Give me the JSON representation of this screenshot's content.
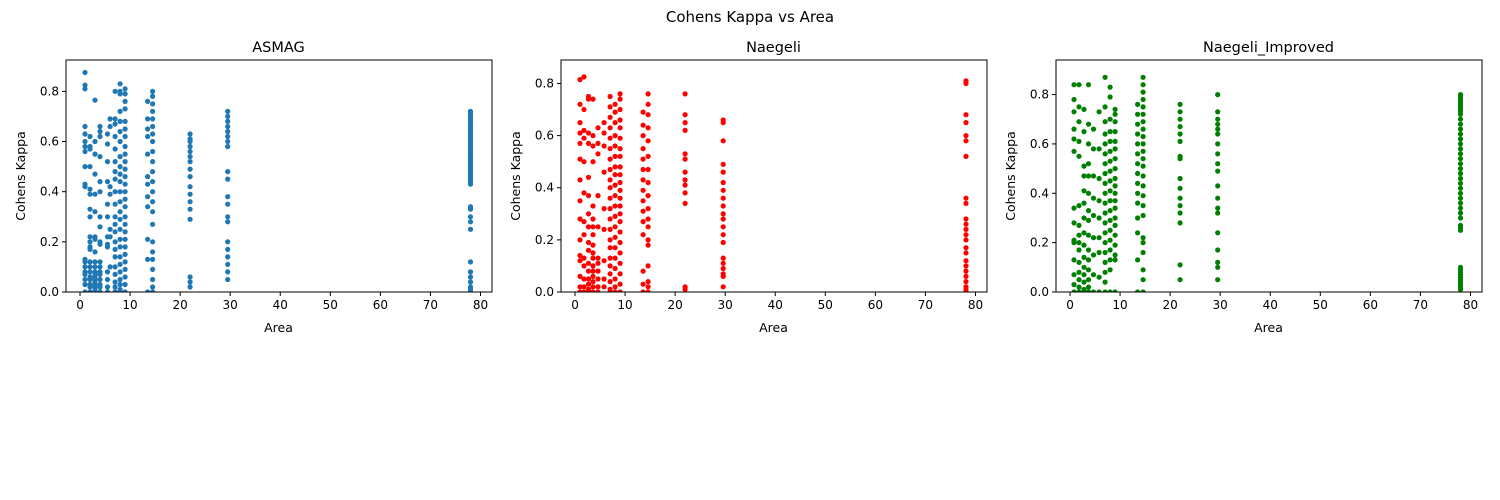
{
  "figure": {
    "suptitle": "Cohens Kappa vs Area"
  },
  "chart_data": [
    {
      "type": "scatter",
      "title": "ASMAG",
      "xlabel": "Area",
      "ylabel": "Cohens Kappa",
      "color": "#1f77b4",
      "xlim": [
        -2.8,
        82.3
      ],
      "ylim": [
        0,
        0.925
      ],
      "xticks": [
        "0",
        "10",
        "20",
        "30",
        "40",
        "50",
        "60",
        "70",
        "80"
      ],
      "yticks": [
        "0.0",
        "0.2",
        "0.4",
        "0.6",
        "0.8"
      ],
      "ytick_values": [
        0,
        0.2,
        0.4,
        0.6,
        0.8
      ],
      "columns": [
        {
          "x": 1.0,
          "y": [
            0.875,
            0.825,
            0.81,
            0.66,
            0.63,
            0.6,
            0.58,
            0.56,
            0.5,
            0.43,
            0.42,
            0.13,
            0.12,
            0.1,
            0.08,
            0.07,
            0.05,
            0.03,
            0.0
          ]
        },
        {
          "x": 2.0,
          "y": [
            0.62,
            0.58,
            0.57,
            0.5,
            0.41,
            0.39,
            0.33,
            0.3,
            0.22,
            0.2,
            0.18,
            0.17,
            0.12,
            0.1,
            0.08,
            0.06,
            0.05,
            0.03,
            0.02,
            0.0
          ]
        },
        {
          "x": 3.0,
          "y": [
            0.765,
            0.6,
            0.55,
            0.47,
            0.39,
            0.32,
            0.22,
            0.21,
            0.16,
            0.12,
            0.1,
            0.08,
            0.07,
            0.06,
            0.05,
            0.04,
            0.03,
            0.02,
            0.01,
            0.0
          ]
        },
        {
          "x": 4.0,
          "y": [
            0.66,
            0.64,
            0.62,
            0.54,
            0.44,
            0.4,
            0.3,
            0.26,
            0.2,
            0.19,
            0.12,
            0.1,
            0.08,
            0.07,
            0.05,
            0.03,
            0.02,
            0.0
          ]
        },
        {
          "x": 5.5,
          "y": [
            0.63,
            0.59,
            0.52,
            0.44,
            0.35,
            0.3,
            0.22,
            0.19,
            0.18,
            0.08,
            0.05,
            0.02,
            0.0
          ]
        },
        {
          "x": 6.0,
          "y": [
            0.69,
            0.66,
            0.42,
            0.39,
            0.25,
            0.22,
            0.1
          ]
        },
        {
          "x": 7.0,
          "y": [
            0.8,
            0.69,
            0.67,
            0.62,
            0.57,
            0.52,
            0.48,
            0.45,
            0.4,
            0.35,
            0.3,
            0.27,
            0.24,
            0.2,
            0.17,
            0.14,
            0.1,
            0.07,
            0.04,
            0.02,
            0.0
          ]
        },
        {
          "x": 8.0,
          "y": [
            0.83,
            0.8,
            0.79,
            0.72,
            0.68,
            0.64,
            0.6,
            0.54,
            0.5,
            0.47,
            0.44,
            0.4,
            0.36,
            0.32,
            0.29,
            0.25,
            0.21,
            0.18,
            0.14,
            0.11,
            0.08,
            0.05,
            0.03,
            0.01,
            0.0
          ]
        },
        {
          "x": 9.0,
          "y": [
            0.81,
            0.79,
            0.76,
            0.73,
            0.68,
            0.65,
            0.62,
            0.58,
            0.55,
            0.52,
            0.49,
            0.46,
            0.43,
            0.4,
            0.37,
            0.34,
            0.3,
            0.27,
            0.24,
            0.21,
            0.18,
            0.15,
            0.12,
            0.09,
            0.06,
            0.03,
            0.0
          ]
        },
        {
          "x": 13.5,
          "y": [
            0.76,
            0.69,
            0.65,
            0.62,
            0.55,
            0.46,
            0.43,
            0.38,
            0.34,
            0.21,
            0.13,
            0.0
          ]
        },
        {
          "x": 14.5,
          "y": [
            0.8,
            0.78,
            0.75,
            0.72,
            0.69,
            0.66,
            0.63,
            0.6,
            0.56,
            0.52,
            0.48,
            0.44,
            0.4,
            0.36,
            0.32,
            0.27,
            0.2,
            0.16,
            0.13,
            0.09,
            0.05,
            0.02,
            0.0
          ]
        },
        {
          "x": 22.0,
          "y": [
            0.63,
            0.61,
            0.6,
            0.58,
            0.56,
            0.54,
            0.52,
            0.49,
            0.46,
            0.42,
            0.39,
            0.36,
            0.33,
            0.29,
            0.06,
            0.04,
            0.02
          ]
        },
        {
          "x": 29.5,
          "y": [
            0.72,
            0.7,
            0.68,
            0.66,
            0.64,
            0.62,
            0.6,
            0.58,
            0.48,
            0.45,
            0.38,
            0.35,
            0.3,
            0.28,
            0.2,
            0.17,
            0.14,
            0.11,
            0.08,
            0.05
          ]
        },
        {
          "x": 78.0,
          "y": [
            0.72,
            0.71,
            0.7,
            0.69,
            0.68,
            0.67,
            0.66,
            0.65,
            0.64,
            0.63,
            0.62,
            0.61,
            0.6,
            0.59,
            0.58,
            0.57,
            0.56,
            0.55,
            0.54,
            0.53,
            0.52,
            0.51,
            0.5,
            0.49,
            0.48,
            0.47,
            0.46,
            0.45,
            0.44,
            0.43,
            0.34,
            0.33,
            0.3,
            0.28,
            0.25,
            0.12,
            0.08,
            0.06,
            0.04,
            0.02,
            0.01,
            0.0
          ]
        }
      ]
    },
    {
      "type": "scatter",
      "title": "Naegeli",
      "xlabel": "Area",
      "ylabel": "Cohens Kappa",
      "color": "#ff0000",
      "xlim": [
        -2.8,
        82.3
      ],
      "ylim": [
        0,
        0.89
      ],
      "xticks": [
        "0",
        "10",
        "20",
        "30",
        "40",
        "50",
        "60",
        "70",
        "80"
      ],
      "yticks": [
        "0.0",
        "0.2",
        "0.4",
        "0.6",
        "0.8"
      ],
      "ytick_values": [
        0,
        0.2,
        0.4,
        0.6,
        0.8
      ],
      "columns": [
        {
          "x": 1.0,
          "y": [
            0.815,
            0.72,
            0.65,
            0.61,
            0.57,
            0.51,
            0.43,
            0.35,
            0.28,
            0.2,
            0.14,
            0.12,
            0.06,
            0.02,
            0.0
          ]
        },
        {
          "x": 1.8,
          "y": [
            0.825,
            0.7,
            0.62,
            0.59,
            0.5,
            0.38,
            0.27,
            0.22,
            0.13,
            0.1,
            0.05,
            0.02,
            0.0
          ]
        },
        {
          "x": 2.7,
          "y": [
            0.75,
            0.74,
            0.61,
            0.57,
            0.44,
            0.37,
            0.3,
            0.25,
            0.19,
            0.16,
            0.11,
            0.08,
            0.05,
            0.03,
            0.01,
            0.0
          ]
        },
        {
          "x": 3.6,
          "y": [
            0.74,
            0.6,
            0.56,
            0.5,
            0.33,
            0.28,
            0.25,
            0.22,
            0.18,
            0.15,
            0.13,
            0.1,
            0.08,
            0.06,
            0.04,
            0.02,
            0.0
          ]
        },
        {
          "x": 4.6,
          "y": [
            0.63,
            0.57,
            0.53,
            0.37,
            0.25,
            0.13,
            0.11,
            0.08,
            0.05,
            0.02,
            0.0
          ]
        },
        {
          "x": 5.8,
          "y": [
            0.65,
            0.61,
            0.56,
            0.46,
            0.32,
            0.24,
            0.12,
            0.05,
            0.02
          ]
        },
        {
          "x": 7.0,
          "y": [
            0.75,
            0.71,
            0.67,
            0.63,
            0.59,
            0.55,
            0.51,
            0.47,
            0.43,
            0.4,
            0.36,
            0.32,
            0.28,
            0.24,
            0.2,
            0.17,
            0.13,
            0.1,
            0.07,
            0.04,
            0.01,
            0.0
          ]
        },
        {
          "x": 8.0,
          "y": [
            0.72,
            0.69,
            0.65,
            0.6,
            0.56,
            0.52,
            0.48,
            0.45,
            0.41,
            0.37,
            0.33,
            0.29,
            0.25,
            0.21,
            0.17,
            0.13,
            0.09,
            0.05,
            0.02,
            0.0
          ]
        },
        {
          "x": 9.0,
          "y": [
            0.76,
            0.74,
            0.7,
            0.66,
            0.63,
            0.59,
            0.55,
            0.52,
            0.48,
            0.45,
            0.42,
            0.39,
            0.36,
            0.33,
            0.3,
            0.27,
            0.23,
            0.19,
            0.15,
            0.11,
            0.07,
            0.03,
            0.0
          ]
        },
        {
          "x": 13.6,
          "y": [
            0.69,
            0.64,
            0.6,
            0.55,
            0.51,
            0.47,
            0.43,
            0.39,
            0.35,
            0.31,
            0.27,
            0.22,
            0.08,
            0.03,
            0.0
          ]
        },
        {
          "x": 14.6,
          "y": [
            0.76,
            0.72,
            0.68,
            0.63,
            0.58,
            0.52,
            0.47,
            0.42,
            0.37,
            0.32,
            0.28,
            0.25,
            0.2,
            0.18,
            0.1,
            0.04,
            0.02,
            0.0
          ]
        },
        {
          "x": 22.0,
          "y": [
            0.76,
            0.68,
            0.65,
            0.62,
            0.53,
            0.51,
            0.46,
            0.43,
            0.41,
            0.38,
            0.34,
            0.02,
            0.01
          ]
        },
        {
          "x": 29.6,
          "y": [
            0.66,
            0.65,
            0.58,
            0.49,
            0.46,
            0.42,
            0.39,
            0.36,
            0.33,
            0.3,
            0.28,
            0.25,
            0.22,
            0.19,
            0.13,
            0.11,
            0.09,
            0.07,
            0.06,
            0.02
          ]
        },
        {
          "x": 78.1,
          "y": [
            0.81,
            0.8,
            0.68,
            0.65,
            0.6,
            0.58,
            0.52,
            0.36,
            0.34,
            0.28,
            0.26,
            0.24,
            0.22,
            0.2,
            0.17,
            0.15,
            0.12,
            0.1,
            0.08,
            0.06,
            0.04,
            0.02,
            0.01,
            0.0
          ]
        }
      ]
    },
    {
      "type": "scatter",
      "title": "Naegeli_Improved",
      "xlabel": "Area",
      "ylabel": "Cohens Kappa",
      "color": "#008000",
      "xlim": [
        -2.8,
        82.3
      ],
      "ylim": [
        0,
        0.94
      ],
      "xticks": [
        "0",
        "10",
        "20",
        "30",
        "40",
        "50",
        "60",
        "70",
        "80"
      ],
      "yticks": [
        "0.0",
        "0.2",
        "0.4",
        "0.6",
        "0.8"
      ],
      "ytick_values": [
        0,
        0.2,
        0.4,
        0.6,
        0.8
      ],
      "columns": [
        {
          "x": 0.8,
          "y": [
            0.84,
            0.78,
            0.73,
            0.66,
            0.62,
            0.57,
            0.34,
            0.28,
            0.21,
            0.2,
            0.13,
            0.07,
            0.03,
            0.0
          ]
        },
        {
          "x": 1.8,
          "y": [
            0.84,
            0.75,
            0.69,
            0.61,
            0.55,
            0.35,
            0.27,
            0.23,
            0.2,
            0.17,
            0.12,
            0.08,
            0.05,
            0.02,
            0.0
          ]
        },
        {
          "x": 2.8,
          "y": [
            0.74,
            0.65,
            0.51,
            0.47,
            0.41,
            0.36,
            0.3,
            0.24,
            0.19,
            0.14,
            0.1,
            0.07,
            0.04,
            0.01,
            0.0
          ]
        },
        {
          "x": 3.7,
          "y": [
            0.84,
            0.68,
            0.6,
            0.52,
            0.47,
            0.4,
            0.33,
            0.29,
            0.23,
            0.17,
            0.13,
            0.09,
            0.05,
            0.02,
            0.0
          ]
        },
        {
          "x": 4.7,
          "y": [
            0.66,
            0.58,
            0.47,
            0.38,
            0.31,
            0.22,
            0.15,
            0.07,
            0.0
          ]
        },
        {
          "x": 5.8,
          "y": [
            0.73,
            0.58,
            0.46,
            0.37,
            0.3,
            0.22,
            0.16,
            0.06,
            0.0
          ]
        },
        {
          "x": 7.0,
          "y": [
            0.87,
            0.75,
            0.69,
            0.64,
            0.6,
            0.56,
            0.52,
            0.48,
            0.44,
            0.4,
            0.36,
            0.32,
            0.28,
            0.24,
            0.2,
            0.16,
            0.12,
            0.08,
            0.04,
            0.0
          ]
        },
        {
          "x": 8.0,
          "y": [
            0.83,
            0.79,
            0.7,
            0.65,
            0.61,
            0.57,
            0.53,
            0.49,
            0.45,
            0.41,
            0.37,
            0.33,
            0.29,
            0.25,
            0.21,
            0.17,
            0.13,
            0.09,
            0.0
          ]
        },
        {
          "x": 9.0,
          "y": [
            0.74,
            0.72,
            0.69,
            0.65,
            0.61,
            0.58,
            0.54,
            0.5,
            0.46,
            0.43,
            0.4,
            0.37,
            0.34,
            0.3,
            0.27,
            0.23,
            0.19,
            0.15,
            0.13,
            0.0
          ]
        },
        {
          "x": 13.5,
          "y": [
            0.76,
            0.72,
            0.68,
            0.64,
            0.6,
            0.56,
            0.52,
            0.48,
            0.44,
            0.4,
            0.36,
            0.3,
            0.24,
            0.13,
            0.0
          ]
        },
        {
          "x": 14.6,
          "y": [
            0.87,
            0.84,
            0.81,
            0.78,
            0.75,
            0.72,
            0.69,
            0.66,
            0.63,
            0.6,
            0.57,
            0.54,
            0.51,
            0.47,
            0.43,
            0.39,
            0.35,
            0.31,
            0.22,
            0.2,
            0.16,
            0.09,
            0.05,
            0.0
          ]
        },
        {
          "x": 22.0,
          "y": [
            0.76,
            0.73,
            0.7,
            0.67,
            0.64,
            0.61,
            0.55,
            0.54,
            0.46,
            0.42,
            0.38,
            0.35,
            0.32,
            0.28,
            0.11,
            0.05
          ]
        },
        {
          "x": 29.5,
          "y": [
            0.8,
            0.73,
            0.7,
            0.68,
            0.66,
            0.64,
            0.6,
            0.56,
            0.52,
            0.49,
            0.43,
            0.38,
            0.34,
            0.32,
            0.24,
            0.17,
            0.12,
            0.1,
            0.05
          ]
        },
        {
          "x": 78.0,
          "y": [
            0.8,
            0.79,
            0.78,
            0.77,
            0.76,
            0.75,
            0.74,
            0.73,
            0.72,
            0.7,
            0.68,
            0.66,
            0.64,
            0.62,
            0.6,
            0.58,
            0.56,
            0.54,
            0.52,
            0.5,
            0.48,
            0.46,
            0.44,
            0.42,
            0.4,
            0.38,
            0.36,
            0.34,
            0.32,
            0.3,
            0.27,
            0.26,
            0.25,
            0.1,
            0.09,
            0.08,
            0.07,
            0.06,
            0.05,
            0.04,
            0.03,
            0.02,
            0.01
          ]
        }
      ]
    }
  ]
}
